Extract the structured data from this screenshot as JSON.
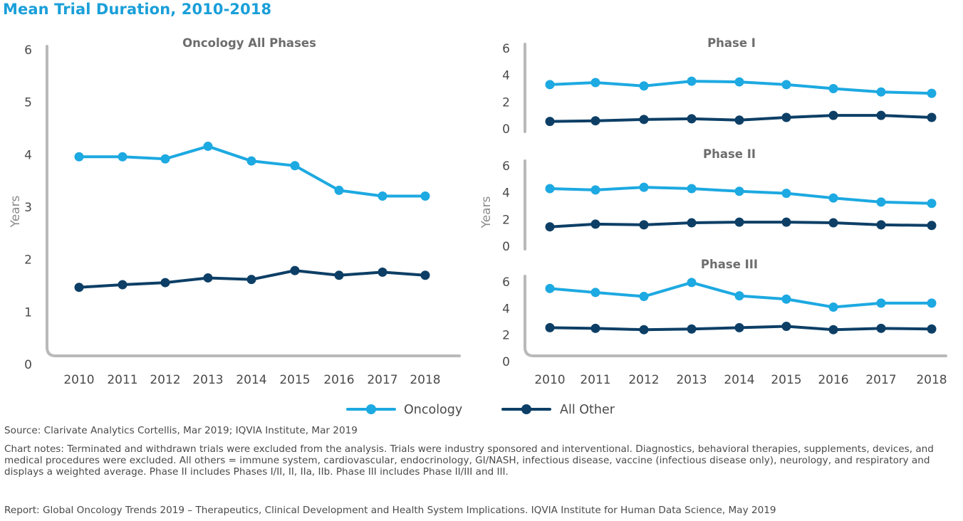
{
  "page": {
    "title": "Mean Trial Duration, 2010-2018",
    "source": "Source: Clarivate Analytics Cortellis, Mar 2019; IQVIA Institute, Mar 2019",
    "chart_notes": "Chart notes: Terminated and withdrawn trials were excluded from the analysis. Trials were industry sponsored and interventional. Diagnostics, behavioral therapies, supplements, devices, and medical procedures were excluded. All others = immune system, cardiovascular, endocrinology, GI/NASH, infectious disease, vaccine (infectious disease only), neurology, and respiratory and displays a weighted average. Phase II includes Phases I/II, II, IIa, IIb. Phase III includes Phase II/III and III.",
    "report": "Report: Global Oncology Trends 2019 – Therapeutics, Clinical Development and Health System Implications. IQVIA Institute for Human Data Science, May 2019"
  },
  "colors": {
    "oncology": "#1da9e1",
    "all_other": "#0d3f66",
    "axis": "#b9b9b9",
    "title": "#1a9fd9"
  },
  "legend": [
    {
      "name": "Oncology",
      "color": "#1da9e1"
    },
    {
      "name": "All Other",
      "color": "#0d3f66"
    }
  ],
  "chart_data": [
    {
      "type": "line",
      "title": "Oncology All Phases",
      "ylabel": "Years",
      "xlabel": "",
      "categories": [
        "2010",
        "2011",
        "2012",
        "2013",
        "2014",
        "2015",
        "2016",
        "2017",
        "2018"
      ],
      "ylim": [
        0,
        6
      ],
      "yticks": [
        0,
        1,
        2,
        3,
        4,
        5,
        6
      ],
      "series": [
        {
          "name": "Oncology",
          "values": [
            3.96,
            3.96,
            3.92,
            4.16,
            3.88,
            3.79,
            3.32,
            3.21,
            3.21
          ]
        },
        {
          "name": "All Other",
          "values": [
            1.47,
            1.52,
            1.56,
            1.65,
            1.62,
            1.79,
            1.7,
            1.76,
            1.7
          ]
        }
      ]
    },
    {
      "type": "line",
      "title": "Phase I",
      "ylabel": "",
      "xlabel": "",
      "categories": [
        "2010",
        "2011",
        "2012",
        "2013",
        "2014",
        "2015",
        "2016",
        "2017",
        "2018"
      ],
      "ylim": [
        0,
        6
      ],
      "yticks": [
        0,
        2,
        4,
        6
      ],
      "series": [
        {
          "name": "Oncology",
          "values": [
            3.3,
            3.45,
            3.2,
            3.55,
            3.5,
            3.3,
            3.0,
            2.75,
            2.65
          ]
        },
        {
          "name": "All Other",
          "values": [
            0.55,
            0.6,
            0.7,
            0.75,
            0.65,
            0.85,
            1.0,
            1.0,
            0.85
          ]
        }
      ]
    },
    {
      "type": "line",
      "title": "Phase II",
      "ylabel": "Years",
      "xlabel": "",
      "categories": [
        "2010",
        "2011",
        "2012",
        "2013",
        "2014",
        "2015",
        "2016",
        "2017",
        "2018"
      ],
      "ylim": [
        0,
        6
      ],
      "yticks": [
        0,
        2,
        4,
        6
      ],
      "series": [
        {
          "name": "Oncology",
          "values": [
            4.3,
            4.2,
            4.4,
            4.3,
            4.1,
            3.95,
            3.6,
            3.3,
            3.2
          ]
        },
        {
          "name": "All Other",
          "values": [
            1.45,
            1.65,
            1.6,
            1.75,
            1.8,
            1.8,
            1.75,
            1.6,
            1.55
          ]
        }
      ]
    },
    {
      "type": "line",
      "title": "Phase III",
      "ylabel": "",
      "xlabel": "",
      "categories": [
        "2010",
        "2011",
        "2012",
        "2013",
        "2014",
        "2015",
        "2016",
        "2017",
        "2018"
      ],
      "ylim": [
        0,
        6
      ],
      "yticks": [
        0,
        2,
        4,
        6
      ],
      "series": [
        {
          "name": "Oncology",
          "values": [
            5.5,
            5.2,
            4.9,
            5.95,
            4.95,
            4.7,
            4.1,
            4.4,
            4.4
          ]
        },
        {
          "name": "All Other",
          "values": [
            2.55,
            2.5,
            2.4,
            2.45,
            2.55,
            2.65,
            2.4,
            2.5,
            2.45
          ]
        }
      ]
    }
  ]
}
